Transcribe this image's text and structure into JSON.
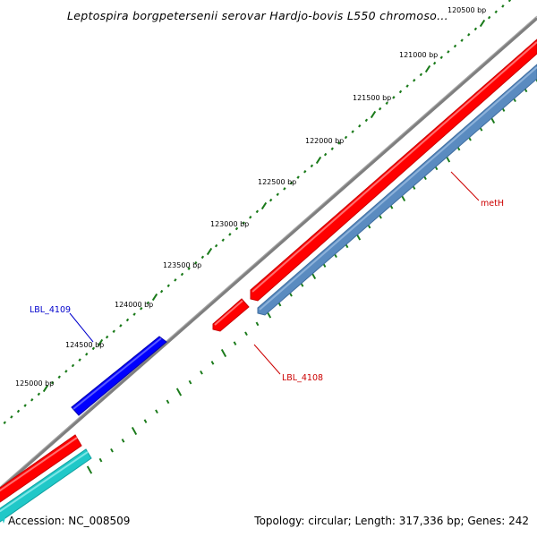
{
  "title": "Leptospira borgpetersenii serovar Hardjo-bovis L550 chromoso...",
  "ticks": [
    {
      "label": "120500 bp"
    },
    {
      "label": "121000 bp"
    },
    {
      "label": "121500 bp"
    },
    {
      "label": "122000 bp"
    },
    {
      "label": "122500 bp"
    },
    {
      "label": "123000 bp"
    },
    {
      "label": "123500 bp"
    },
    {
      "label": "124000 bp"
    },
    {
      "label": "124500 bp"
    },
    {
      "label": "125000 bp"
    }
  ],
  "genes": [
    {
      "name": "metH",
      "color": "#cc0000"
    },
    {
      "name": "LBL_4108",
      "color": "#cc0000"
    },
    {
      "name": "LBL_4109",
      "color": "#0000cc"
    }
  ],
  "colors": {
    "backbone": "#7f7f7f",
    "forward_red": "#ff0000",
    "reverse_blue": "#5a8bc0",
    "forward_blue": "#0000ff",
    "cyan": "#20c8c8",
    "tick": "#1a7a1a"
  },
  "footer": {
    "accession": "Accession: NC_008509",
    "summary": "Topology: circular; Length: 317,336 bp; Genes: 242"
  }
}
